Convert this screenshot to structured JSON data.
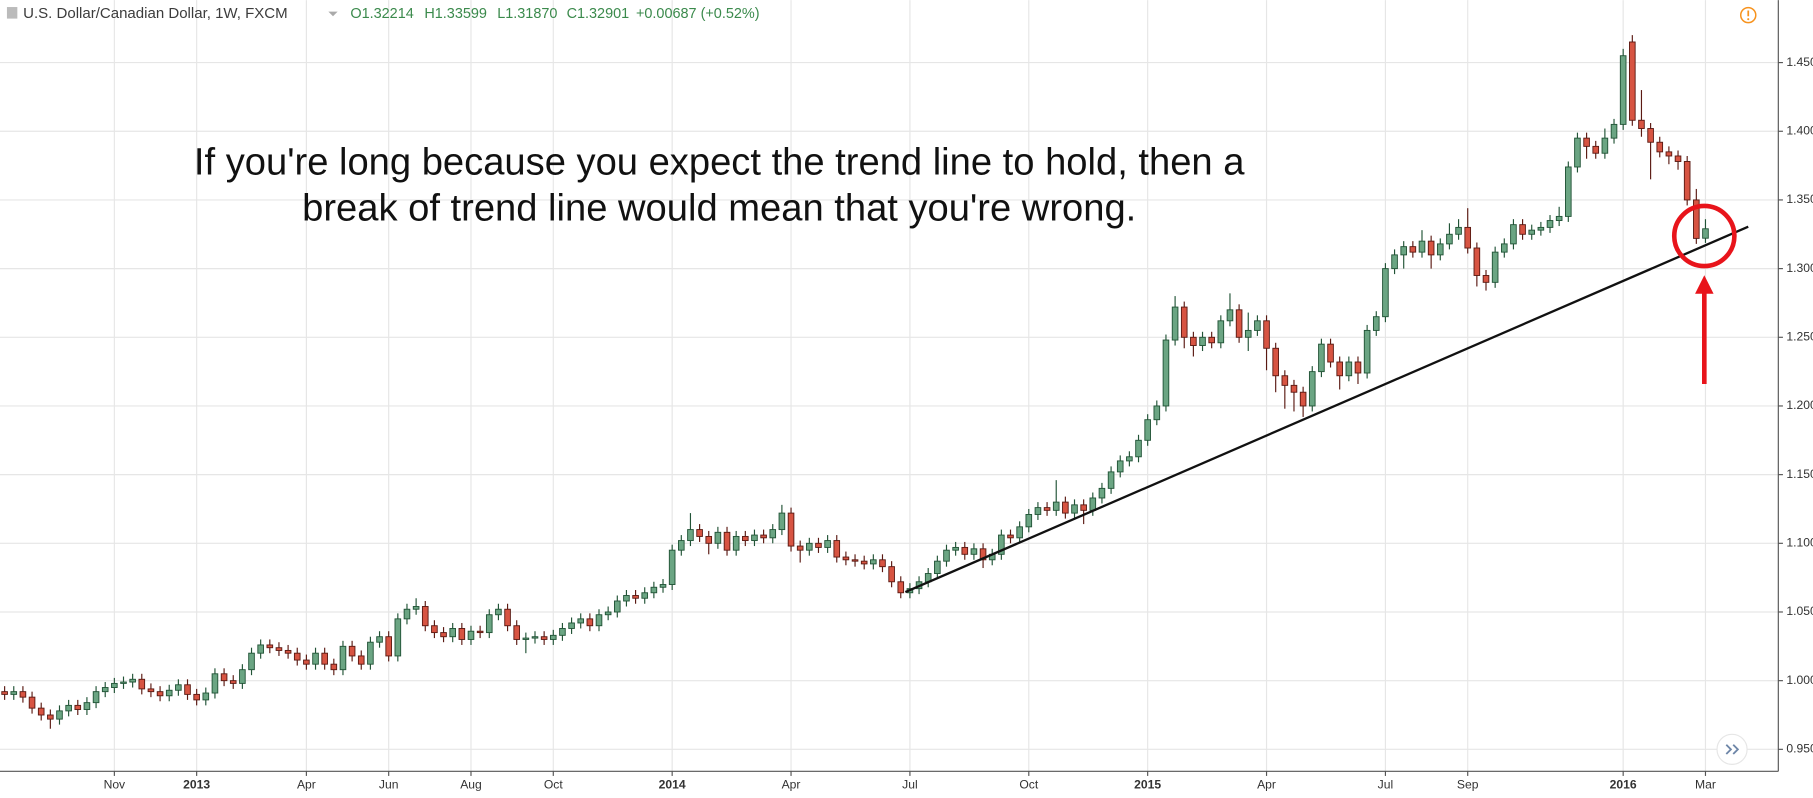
{
  "chart_data": {
    "type": "candlestick",
    "title": "U.S. Dollar/Canadian Dollar, 1W, FXCM",
    "legend_values": [
      "O1.32214",
      "H1.33599",
      "L1.31870",
      "C1.32901",
      "+0.00687 (+0.52%)"
    ],
    "annotation": [
      "If you're long because you expect the trend line to hold, then a",
      "break of trend line would mean that you're wrong."
    ],
    "up_color": "#6ba583",
    "down_color": "#d75442",
    "grid": true,
    "ylim": [
      0.934,
      1.4955
    ],
    "yticks": [
      {
        "value": 0.95,
        "label": "0.95000"
      },
      {
        "value": 1.0,
        "label": "1.00000"
      },
      {
        "value": 1.05,
        "label": "1.05000"
      },
      {
        "value": 1.1,
        "label": "1.10000"
      },
      {
        "value": 1.15,
        "label": "1.15000"
      },
      {
        "value": 1.2,
        "label": "1.20000"
      },
      {
        "value": 1.25,
        "label": "1.25000"
      },
      {
        "value": 1.3,
        "label": "1.30000"
      },
      {
        "value": 1.35,
        "label": "1.35000"
      },
      {
        "value": 1.4,
        "label": "1.40000"
      },
      {
        "value": 1.45,
        "label": "1.45000"
      }
    ],
    "categories": [
      null,
      null,
      null,
      null,
      null,
      null,
      null,
      null,
      null,
      null,
      null,
      null,
      "Nov",
      null,
      null,
      null,
      null,
      null,
      null,
      null,
      null,
      "2013",
      null,
      null,
      null,
      null,
      null,
      null,
      null,
      null,
      null,
      null,
      null,
      "Apr",
      null,
      null,
      null,
      null,
      null,
      null,
      null,
      null,
      "Jun",
      null,
      null,
      null,
      null,
      null,
      null,
      null,
      null,
      "Aug",
      null,
      null,
      null,
      null,
      null,
      null,
      null,
      null,
      "Oct",
      null,
      null,
      null,
      null,
      null,
      null,
      null,
      null,
      null,
      null,
      null,
      null,
      "2014",
      null,
      null,
      null,
      null,
      null,
      null,
      null,
      null,
      null,
      null,
      null,
      null,
      "Apr",
      null,
      null,
      null,
      null,
      null,
      null,
      null,
      null,
      null,
      null,
      null,
      null,
      "Jul",
      null,
      null,
      null,
      null,
      null,
      null,
      null,
      null,
      null,
      null,
      null,
      null,
      "Oct",
      null,
      null,
      null,
      null,
      null,
      null,
      null,
      null,
      null,
      null,
      null,
      null,
      "2015",
      null,
      null,
      null,
      null,
      null,
      null,
      null,
      null,
      null,
      null,
      null,
      null,
      "Apr",
      null,
      null,
      null,
      null,
      null,
      null,
      null,
      null,
      null,
      null,
      null,
      null,
      "Jul",
      null,
      null,
      null,
      null,
      null,
      null,
      null,
      null,
      "Sep",
      null,
      null,
      null,
      null,
      null,
      null,
      null,
      null,
      null,
      null,
      null,
      null,
      null,
      null,
      null,
      null,
      "2016",
      null,
      null,
      null,
      null,
      null,
      null,
      null,
      null,
      "Mar"
    ],
    "open": [
      0.992,
      0.99,
      0.992,
      0.988,
      0.98,
      0.975,
      0.972,
      0.978,
      0.982,
      0.979,
      0.984,
      0.992,
      0.995,
      0.998,
      0.999,
      1.001,
      0.994,
      0.992,
      0.989,
      0.993,
      0.997,
      0.99,
      0.986,
      0.991,
      1.005,
      1.0,
      0.998,
      1.008,
      1.02,
      1.026,
      1.024,
      1.022,
      1.02,
      1.015,
      1.012,
      1.02,
      1.012,
      1.008,
      1.025,
      1.018,
      1.012,
      1.028,
      1.032,
      1.018,
      1.045,
      1.052,
      1.054,
      1.04,
      1.035,
      1.032,
      1.038,
      1.03,
      1.036,
      1.035,
      1.048,
      1.052,
      1.04,
      1.03,
      1.031,
      1.032,
      1.03,
      1.033,
      1.038,
      1.042,
      1.045,
      1.04,
      1.048,
      1.05,
      1.058,
      1.062,
      1.06,
      1.064,
      1.068,
      1.07,
      1.095,
      1.102,
      1.11,
      1.105,
      1.1,
      1.108,
      1.095,
      1.105,
      1.102,
      1.106,
      1.104,
      1.11,
      1.122,
      1.098,
      1.095,
      1.1,
      1.097,
      1.102,
      1.09,
      1.088,
      1.087,
      1.085,
      1.088,
      1.083,
      1.072,
      1.064,
      1.067,
      1.072,
      1.078,
      1.087,
      1.095,
      1.097,
      1.092,
      1.096,
      1.088,
      1.092,
      1.106,
      1.104,
      1.112,
      1.121,
      1.126,
      1.124,
      1.13,
      1.122,
      1.128,
      1.124,
      1.133,
      1.14,
      1.152,
      1.16,
      1.163,
      1.175,
      1.19,
      1.2,
      1.248,
      1.272,
      1.25,
      1.244,
      1.25,
      1.246,
      1.262,
      1.27,
      1.25,
      1.255,
      1.262,
      1.242,
      1.222,
      1.215,
      1.21,
      1.2,
      1.225,
      1.245,
      1.232,
      1.222,
      1.232,
      1.224,
      1.255,
      1.265,
      1.3,
      1.31,
      1.316,
      1.312,
      1.32,
      1.31,
      1.318,
      1.325,
      1.33,
      1.315,
      1.295,
      1.29,
      1.312,
      1.318,
      1.332,
      1.325,
      1.328,
      1.33,
      1.335,
      1.338,
      1.374,
      1.395,
      1.389,
      1.384,
      1.395,
      1.405,
      1.465,
      1.408,
      1.402,
      1.392,
      1.385,
      1.382,
      1.378,
      1.35,
      1.32214
    ],
    "high": [
      0.996,
      0.996,
      0.996,
      0.992,
      0.984,
      0.979,
      0.982,
      0.986,
      0.986,
      0.988,
      0.996,
      0.999,
      1.002,
      1.003,
      1.005,
      1.005,
      0.998,
      0.996,
      0.997,
      1.001,
      1.001,
      0.994,
      0.995,
      1.009,
      1.009,
      1.004,
      1.012,
      1.024,
      1.03,
      1.03,
      1.028,
      1.026,
      1.024,
      1.019,
      1.024,
      1.024,
      1.016,
      1.029,
      1.029,
      1.022,
      1.032,
      1.036,
      1.036,
      1.049,
      1.056,
      1.06,
      1.058,
      1.044,
      1.039,
      1.042,
      1.042,
      1.04,
      1.04,
      1.052,
      1.056,
      1.056,
      1.044,
      1.035,
      1.036,
      1.036,
      1.037,
      1.042,
      1.046,
      1.049,
      1.049,
      1.052,
      1.054,
      1.062,
      1.066,
      1.066,
      1.068,
      1.072,
      1.074,
      1.099,
      1.106,
      1.122,
      1.114,
      1.109,
      1.112,
      1.112,
      1.109,
      1.109,
      1.11,
      1.11,
      1.114,
      1.128,
      1.126,
      1.102,
      1.104,
      1.104,
      1.106,
      1.106,
      1.094,
      1.092,
      1.091,
      1.092,
      1.092,
      1.087,
      1.076,
      1.071,
      1.076,
      1.082,
      1.091,
      1.099,
      1.101,
      1.101,
      1.1,
      1.1,
      1.096,
      1.11,
      1.11,
      1.116,
      1.125,
      1.13,
      1.13,
      1.146,
      1.134,
      1.132,
      1.132,
      1.137,
      1.144,
      1.156,
      1.164,
      1.167,
      1.179,
      1.194,
      1.204,
      1.252,
      1.28,
      1.276,
      1.254,
      1.254,
      1.254,
      1.266,
      1.282,
      1.274,
      1.268,
      1.266,
      1.266,
      1.246,
      1.226,
      1.219,
      1.214,
      1.229,
      1.249,
      1.249,
      1.236,
      1.236,
      1.236,
      1.259,
      1.269,
      1.304,
      1.314,
      1.32,
      1.32,
      1.328,
      1.324,
      1.322,
      1.333,
      1.336,
      1.344,
      1.319,
      1.299,
      1.316,
      1.322,
      1.336,
      1.336,
      1.332,
      1.334,
      1.339,
      1.345,
      1.378,
      1.399,
      1.399,
      1.393,
      1.402,
      1.409,
      1.46,
      1.47,
      1.43,
      1.406,
      1.396,
      1.389,
      1.386,
      1.382,
      1.358,
      1.33599
    ],
    "low": [
      0.986,
      0.986,
      0.984,
      0.976,
      0.971,
      0.965,
      0.968,
      0.974,
      0.975,
      0.975,
      0.98,
      0.988,
      0.991,
      0.994,
      0.995,
      0.99,
      0.988,
      0.985,
      0.985,
      0.989,
      0.986,
      0.982,
      0.982,
      0.987,
      0.996,
      0.994,
      0.994,
      1.004,
      1.016,
      1.02,
      1.018,
      1.016,
      1.011,
      1.008,
      1.008,
      1.008,
      1.004,
      1.004,
      1.014,
      1.008,
      1.008,
      1.024,
      1.014,
      1.014,
      1.041,
      1.048,
      1.036,
      1.031,
      1.028,
      1.028,
      1.026,
      1.026,
      1.031,
      1.031,
      1.044,
      1.036,
      1.026,
      1.02,
      1.027,
      1.026,
      1.026,
      1.029,
      1.034,
      1.038,
      1.036,
      1.036,
      1.044,
      1.046,
      1.054,
      1.056,
      1.056,
      1.06,
      1.064,
      1.066,
      1.091,
      1.098,
      1.101,
      1.092,
      1.096,
      1.091,
      1.091,
      1.098,
      1.098,
      1.1,
      1.1,
      1.106,
      1.094,
      1.086,
      1.091,
      1.093,
      1.093,
      1.086,
      1.084,
      1.083,
      1.081,
      1.081,
      1.079,
      1.068,
      1.06,
      1.06,
      1.063,
      1.068,
      1.074,
      1.083,
      1.091,
      1.088,
      1.088,
      1.082,
      1.084,
      1.088,
      1.1,
      1.1,
      1.108,
      1.117,
      1.12,
      1.12,
      1.118,
      1.118,
      1.114,
      1.12,
      1.129,
      1.136,
      1.148,
      1.156,
      1.159,
      1.171,
      1.186,
      1.196,
      1.244,
      1.242,
      1.236,
      1.24,
      1.242,
      1.242,
      1.258,
      1.246,
      1.24,
      1.251,
      1.226,
      1.21,
      1.198,
      1.196,
      1.192,
      1.196,
      1.221,
      1.228,
      1.212,
      1.218,
      1.216,
      1.22,
      1.251,
      1.261,
      1.296,
      1.3,
      1.308,
      1.308,
      1.3,
      1.306,
      1.314,
      1.321,
      1.311,
      1.287,
      1.284,
      1.286,
      1.308,
      1.314,
      1.321,
      1.321,
      1.324,
      1.326,
      1.331,
      1.334,
      1.37,
      1.38,
      1.38,
      1.38,
      1.391,
      1.401,
      1.404,
      1.396,
      1.365,
      1.381,
      1.376,
      1.372,
      1.346,
      1.318,
      1.3187
    ],
    "close": [
      0.99,
      0.992,
      0.988,
      0.98,
      0.975,
      0.972,
      0.978,
      0.982,
      0.979,
      0.984,
      0.992,
      0.995,
      0.998,
      0.999,
      1.001,
      0.994,
      0.992,
      0.989,
      0.993,
      0.997,
      0.99,
      0.986,
      0.991,
      1.005,
      1.0,
      0.998,
      1.008,
      1.02,
      1.026,
      1.024,
      1.022,
      1.02,
      1.015,
      1.012,
      1.02,
      1.012,
      1.008,
      1.025,
      1.018,
      1.012,
      1.028,
      1.032,
      1.018,
      1.045,
      1.052,
      1.054,
      1.04,
      1.035,
      1.032,
      1.038,
      1.03,
      1.036,
      1.035,
      1.048,
      1.052,
      1.04,
      1.03,
      1.031,
      1.032,
      1.03,
      1.033,
      1.038,
      1.042,
      1.045,
      1.04,
      1.048,
      1.05,
      1.058,
      1.062,
      1.06,
      1.064,
      1.068,
      1.07,
      1.095,
      1.102,
      1.11,
      1.105,
      1.1,
      1.108,
      1.095,
      1.105,
      1.102,
      1.106,
      1.104,
      1.11,
      1.122,
      1.098,
      1.095,
      1.1,
      1.097,
      1.102,
      1.09,
      1.088,
      1.087,
      1.085,
      1.088,
      1.083,
      1.072,
      1.064,
      1.067,
      1.072,
      1.078,
      1.087,
      1.095,
      1.097,
      1.092,
      1.096,
      1.088,
      1.092,
      1.106,
      1.104,
      1.112,
      1.121,
      1.126,
      1.124,
      1.13,
      1.122,
      1.128,
      1.124,
      1.133,
      1.14,
      1.152,
      1.16,
      1.163,
      1.175,
      1.19,
      1.2,
      1.248,
      1.272,
      1.25,
      1.244,
      1.25,
      1.246,
      1.262,
      1.27,
      1.25,
      1.255,
      1.262,
      1.242,
      1.222,
      1.215,
      1.21,
      1.2,
      1.225,
      1.245,
      1.232,
      1.222,
      1.232,
      1.224,
      1.255,
      1.265,
      1.3,
      1.31,
      1.316,
      1.312,
      1.32,
      1.31,
      1.318,
      1.325,
      1.33,
      1.315,
      1.295,
      1.29,
      1.312,
      1.318,
      1.332,
      1.325,
      1.328,
      1.33,
      1.335,
      1.338,
      1.374,
      1.395,
      1.389,
      1.384,
      1.395,
      1.405,
      1.455,
      1.408,
      1.402,
      1.392,
      1.385,
      1.382,
      1.378,
      1.35,
      1.322,
      1.32901
    ]
  }
}
